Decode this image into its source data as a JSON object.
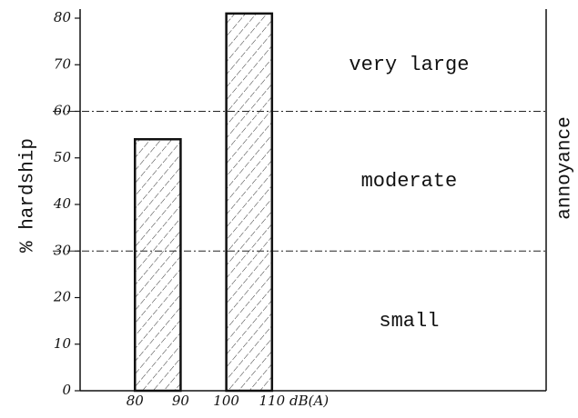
{
  "chart_data": {
    "type": "histogram",
    "bins": [
      80,
      90,
      100,
      110
    ],
    "values": [
      54,
      null,
      81
    ],
    "color": "#111111",
    "xlim": [
      68,
      170
    ],
    "xticks": [
      80,
      90,
      100,
      110
    ],
    "xlabel": "dB(A)",
    "ylim": [
      0,
      80
    ],
    "yticks": [
      0,
      10,
      20,
      30,
      40,
      50,
      60,
      70,
      80
    ],
    "ylabel": "% hardship",
    "y2label": "annoyance",
    "thresholds": [
      30,
      60
    ],
    "region_labels": [
      "small",
      "moderate",
      "very large"
    ]
  }
}
